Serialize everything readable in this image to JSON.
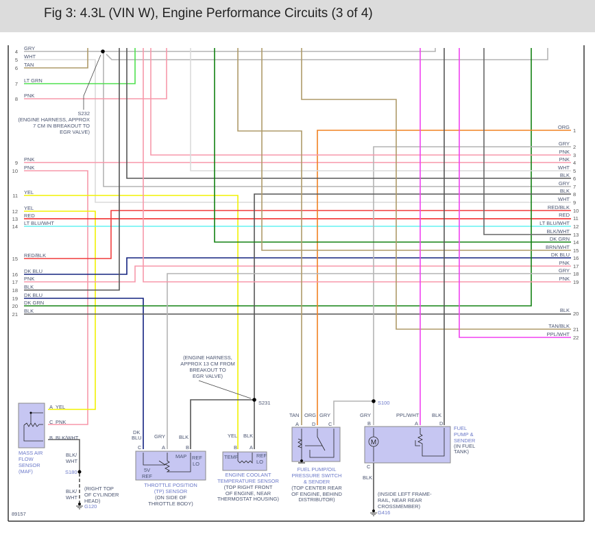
{
  "title": "Fig 3: 4.3L (VIN W), Engine Performance Circuits (3 of 4)",
  "figure_number": "89157",
  "colors": {
    "GRY": "#b4b4b4",
    "WHT": "#dadada",
    "TAN": "#ae9a68",
    "LT GRN": "#4ee04e",
    "PNK": "#f797aa",
    "YEL": "#f2f200",
    "RED": "#f01c1c",
    "LT BLU/WHT": "#62f2f2",
    "RED/BLK": "#f03c3c",
    "DK BLU": "#10207e",
    "BLK": "#555555",
    "DK GRN": "#108010",
    "ORG": "#f08020",
    "BRN/WHT": "#ae9a68",
    "TAN/BLK": "#ae9a68",
    "PPL/WHT": "#f040f0",
    "BLK/WHT": "#666666",
    "box": "#c6c6f2"
  },
  "left_connector": [
    {
      "pin": "4",
      "color": "GRY"
    },
    {
      "pin": "5",
      "color": "WHT"
    },
    {
      "pin": "6",
      "color": "TAN"
    },
    {
      "pin": "7",
      "color": "LT GRN"
    },
    {
      "pin": "8",
      "color": "PNK"
    },
    {
      "pin": "9",
      "color": "PNK"
    },
    {
      "pin": "10",
      "color": "PNK"
    },
    {
      "pin": "11",
      "color": "YEL"
    },
    {
      "pin": "12",
      "color": "YEL"
    },
    {
      "pin": "13",
      "color": "RED"
    },
    {
      "pin": "14",
      "color": "LT BLU/WHT"
    },
    {
      "pin": "15",
      "color": "RED/BLK"
    },
    {
      "pin": "16",
      "color": "DK BLU"
    },
    {
      "pin": "17",
      "color": "PNK"
    },
    {
      "pin": "18",
      "color": "BLK"
    },
    {
      "pin": "19",
      "color": "DK BLU"
    },
    {
      "pin": "20",
      "color": "DK GRN"
    },
    {
      "pin": "21",
      "color": "BLK"
    }
  ],
  "right_connector": [
    {
      "pin": "1",
      "color": "ORG"
    },
    {
      "pin": "2",
      "color": "GRY"
    },
    {
      "pin": "3",
      "color": "PNK"
    },
    {
      "pin": "4",
      "color": "PNK"
    },
    {
      "pin": "5",
      "color": "WHT"
    },
    {
      "pin": "6",
      "color": "BLK"
    },
    {
      "pin": "7",
      "color": "GRY"
    },
    {
      "pin": "8",
      "color": "BLK"
    },
    {
      "pin": "9",
      "color": "WHT"
    },
    {
      "pin": "10",
      "color": "RED/BLK"
    },
    {
      "pin": "11",
      "color": "RED"
    },
    {
      "pin": "12",
      "color": "LT BLU/WHT"
    },
    {
      "pin": "13",
      "color": "BLK/WHT"
    },
    {
      "pin": "14",
      "color": "DK GRN"
    },
    {
      "pin": "15",
      "color": "BRN/WHT"
    },
    {
      "pin": "16",
      "color": "DK BLU"
    },
    {
      "pin": "17",
      "color": "PNK"
    },
    {
      "pin": "18",
      "color": "GRY"
    },
    {
      "pin": "19",
      "color": "PNK"
    },
    {
      "pin": "20",
      "color": "BLK"
    },
    {
      "pin": "21",
      "color": "TAN/BLK"
    },
    {
      "pin": "22",
      "color": "PPL/WHT"
    }
  ],
  "splices": {
    "s232": {
      "id": "S232",
      "note": [
        "(ENGINE HARNESS, APPROX",
        "7 CM IN BREAKOUT TO",
        "EGR VALVE)"
      ]
    },
    "s231": {
      "id": "S231",
      "note": [
        "(ENGINE HARNESS,",
        "APPROX 13 CM FROM",
        "BREAKOUT TO",
        "EGR VALVE)"
      ]
    },
    "s180": {
      "id": "S180"
    },
    "s100": {
      "id": "S100"
    }
  },
  "grounds": {
    "g120": {
      "id": "G120",
      "note": [
        "(RIGHT TOP",
        "OF CYLINDER",
        "HEAD)"
      ]
    },
    "g416": {
      "id": "G416",
      "note": [
        "(INSIDE LEFT FRAME-",
        "RAIL, NEAR REAR",
        "CROSSMEMBER)"
      ]
    }
  },
  "components": {
    "maf": {
      "name": [
        "MASS AIR",
        "FLOW",
        "SENSOR",
        "(MAF)"
      ],
      "pins": [
        {
          "pin": "A",
          "wire": "YEL"
        },
        {
          "pin": "C",
          "wire": "PNK"
        },
        {
          "pin": "B",
          "wire": "BLK/WHT"
        }
      ],
      "ground_wire": [
        "BLK/",
        "WHT"
      ],
      "ground_wire2": [
        "BLK/",
        "WHT"
      ]
    },
    "tp": {
      "name": [
        "THROTTLE POSITION",
        "(TP) SENSOR"
      ],
      "location": [
        "(ON SIDE OF",
        "THROTTLE BODY)"
      ],
      "pins": [
        {
          "pin": "C",
          "wire": [
            "DK",
            "BLU"
          ]
        },
        {
          "pin": "A",
          "wire": "GRY"
        },
        {
          "pin": "B",
          "wire": "BLK"
        }
      ],
      "inner": {
        "map": "MAP",
        "ref_lo": [
          "REF",
          "LO"
        ],
        "ref5v": [
          "5V",
          "REF"
        ]
      }
    },
    "ect": {
      "name": [
        "ENGINE COOLANT",
        "TEMPERATURE SENSOR"
      ],
      "location": [
        "(TOP RIGHT FRONT",
        "OF ENGINE, NEAR",
        "THERMOSTAT HOUSING)"
      ],
      "pins": [
        {
          "pin": "B",
          "wire": "YEL"
        },
        {
          "pin": "A",
          "wire": "BLK"
        }
      ],
      "inner": {
        "temp": "TEMP",
        "ref_lo": [
          "REF",
          "LO"
        ]
      }
    },
    "fpop": {
      "name": [
        "FUEL PUMP/OIL",
        "PRESSURE SWITCH",
        "& SENDER"
      ],
      "location": [
        "(TOP CENTER REAR",
        "OF ENGINE, BEHIND",
        "DISTRIBUTOR)"
      ],
      "pins": [
        {
          "pin": "A",
          "wire": "TAN"
        },
        {
          "pin": "D",
          "wire": "ORG"
        },
        {
          "pin": "C",
          "wire": "GRY"
        }
      ]
    },
    "fuel_pump": {
      "name": [
        "FUEL",
        "PUMP &",
        "SENDER"
      ],
      "location": [
        "(IN FUEL",
        "TANK)"
      ],
      "pins": [
        {
          "pin": "B",
          "wire": "GRY"
        },
        {
          "pin": "A",
          "wire": "PPL/WHT"
        },
        {
          "pin": "D",
          "wire": "BLK"
        },
        {
          "pin": "C",
          "wire": "BLK"
        }
      ],
      "motor": "M"
    }
  }
}
